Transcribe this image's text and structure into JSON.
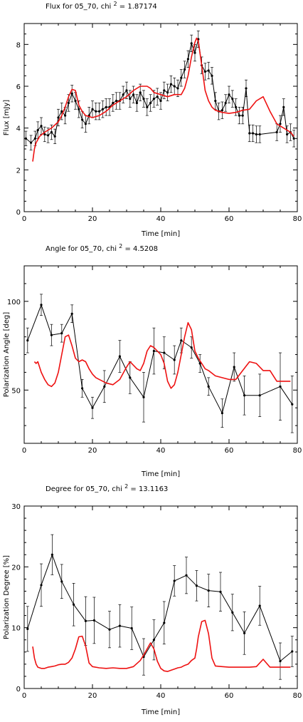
{
  "chart_data": [
    {
      "type": "line",
      "title": "Flux for 05_70, chi",
      "title_sup": "2",
      "title_value": " = 1.87174",
      "xlabel": "Time [min]",
      "ylabel": "Flux [mJy]",
      "xlim": [
        0,
        80
      ],
      "ylim": [
        0,
        9.0
      ],
      "xticks": [
        0,
        20,
        40,
        60,
        80
      ],
      "yticks": [
        0,
        2,
        4,
        6,
        8
      ],
      "series": [
        {
          "role": "observed",
          "color": "#000000",
          "x": [
            0.5,
            2,
            3.2,
            4,
            5,
            6,
            7,
            8,
            9,
            10,
            11,
            12,
            13,
            14,
            15,
            16,
            17,
            18,
            19,
            20,
            21,
            22,
            23,
            24,
            25,
            26,
            27,
            28,
            29,
            30,
            31,
            32,
            33,
            34,
            35,
            36,
            37,
            38,
            39,
            40,
            41,
            42,
            43,
            44,
            45,
            46,
            47,
            48,
            49,
            50,
            51,
            52,
            53,
            54,
            55,
            56,
            57,
            58,
            59,
            60,
            61,
            62,
            63,
            64,
            65,
            66,
            67,
            68,
            69,
            74,
            75,
            76,
            77,
            78,
            79
          ],
          "y": [
            3.5,
            3.3,
            3.5,
            3.9,
            4.1,
            3.7,
            3.65,
            3.8,
            3.6,
            4.5,
            4.8,
            4.6,
            5.2,
            5.65,
            5.3,
            4.9,
            4.4,
            4.2,
            4.6,
            4.9,
            4.8,
            4.8,
            4.9,
            5.0,
            5.0,
            5.2,
            5.3,
            5.3,
            5.6,
            5.8,
            5.4,
            5.6,
            5.2,
            5.7,
            5.4,
            5.0,
            5.2,
            5.4,
            5.5,
            5.3,
            5.8,
            5.7,
            6.1,
            6.0,
            5.9,
            6.4,
            6.8,
            7.3,
            8.05,
            7.6,
            8.25,
            7.0,
            6.7,
            6.75,
            6.5,
            5.3,
            4.8,
            4.85,
            5.2,
            5.6,
            5.4,
            5.0,
            4.6,
            4.6,
            5.9,
            3.75,
            3.75,
            3.7,
            3.7,
            3.8,
            4.2,
            5.0,
            3.7,
            3.8,
            3.5
          ],
          "err": [
            0.35,
            0.35,
            0.35,
            0.4,
            0.4,
            0.35,
            0.35,
            0.35,
            0.35,
            0.4,
            0.4,
            0.4,
            0.4,
            0.4,
            0.4,
            0.4,
            0.4,
            0.4,
            0.4,
            0.4,
            0.4,
            0.4,
            0.4,
            0.4,
            0.4,
            0.4,
            0.4,
            0.4,
            0.4,
            0.4,
            0.4,
            0.4,
            0.4,
            0.4,
            0.4,
            0.4,
            0.4,
            0.4,
            0.4,
            0.4,
            0.4,
            0.4,
            0.4,
            0.4,
            0.4,
            0.4,
            0.4,
            0.4,
            0.4,
            0.4,
            0.4,
            0.4,
            0.4,
            0.4,
            0.4,
            0.4,
            0.4,
            0.4,
            0.4,
            0.4,
            0.4,
            0.4,
            0.4,
            0.4,
            0.4,
            0.4,
            0.4,
            0.4,
            0.4,
            0.4,
            0.4,
            0.4,
            0.4,
            0.4,
            0.4
          ]
        },
        {
          "role": "model",
          "color": "#ee1111",
          "x": [
            2.5,
            3,
            3.5,
            4.5,
            6,
            8,
            10,
            11,
            12,
            13,
            14,
            15,
            16,
            17,
            18,
            20,
            22,
            24,
            26,
            28,
            30,
            32,
            34,
            36,
            37,
            38,
            40,
            42,
            44,
            46,
            47,
            48,
            49,
            50,
            50.5,
            51,
            52,
            53,
            54,
            55,
            56,
            58,
            60,
            62,
            64,
            66,
            68,
            70,
            72,
            74,
            76,
            78,
            79
          ],
          "y": [
            2.4,
            3.0,
            3.3,
            3.6,
            3.8,
            4.0,
            4.3,
            4.6,
            5.0,
            5.5,
            5.85,
            5.8,
            5.1,
            4.8,
            4.6,
            4.5,
            4.6,
            4.8,
            5.1,
            5.3,
            5.5,
            5.8,
            6.0,
            6.0,
            5.9,
            5.7,
            5.6,
            5.5,
            5.6,
            5.6,
            5.9,
            6.5,
            7.4,
            8.1,
            8.3,
            8.15,
            7.0,
            5.8,
            5.3,
            5.0,
            4.85,
            4.75,
            4.7,
            4.75,
            4.85,
            4.9,
            5.3,
            5.5,
            4.8,
            4.2,
            4.0,
            3.8,
            3.6
          ]
        }
      ]
    },
    {
      "type": "line",
      "title": "Angle for 05_70, chi",
      "title_sup": "2",
      "title_value": " = 4.5208",
      "xlabel": "Time [min]",
      "ylabel": "Polarization Angle [deg]",
      "xlim": [
        0,
        80
      ],
      "ylim": [
        20,
        120
      ],
      "xticks": [
        0,
        20,
        40,
        60,
        80
      ],
      "yticks": [
        50,
        100
      ],
      "series": [
        {
          "role": "observed",
          "color": "#000000",
          "x": [
            1,
            5,
            8,
            11,
            14,
            17,
            20,
            23.5,
            28,
            31,
            35,
            38,
            41,
            44,
            46,
            49,
            51.5,
            54,
            58,
            61.5,
            64.5,
            69,
            75,
            78.5
          ],
          "y": [
            78,
            98,
            81,
            82,
            93,
            51,
            40,
            52,
            69,
            57,
            46,
            72,
            71,
            67,
            78,
            74,
            65,
            52,
            37,
            63,
            47,
            47,
            52,
            42
          ],
          "err": [
            7,
            6,
            6,
            5,
            5,
            5,
            6,
            9,
            9,
            9,
            14,
            13,
            9,
            8,
            7,
            6,
            5,
            5,
            8,
            8,
            11,
            12,
            19,
            16
          ]
        },
        {
          "role": "model",
          "color": "#ee1111",
          "x": [
            3,
            3.5,
            4,
            5,
            6,
            7,
            8,
            9,
            10,
            11,
            12,
            13,
            14,
            15,
            16,
            17,
            18,
            19,
            20,
            21,
            22,
            24,
            26,
            28,
            30,
            31,
            32,
            33,
            34,
            35,
            36,
            37,
            38,
            39,
            40,
            41,
            42,
            43,
            44,
            45,
            46,
            47,
            48,
            49,
            50,
            51,
            52,
            53,
            54,
            56,
            58,
            60,
            62,
            64,
            66,
            68,
            70,
            72,
            74,
            76,
            78
          ],
          "y": [
            66,
            65,
            66,
            60,
            56,
            53,
            52,
            54,
            60,
            70,
            80,
            81,
            75,
            68,
            66,
            67,
            66,
            62,
            59,
            57,
            56,
            54,
            53,
            56,
            63,
            66,
            64,
            62,
            61,
            65,
            72,
            75,
            74,
            72,
            70,
            65,
            55,
            51,
            53,
            60,
            70,
            80,
            88,
            84,
            72,
            68,
            65,
            62,
            61,
            58,
            57,
            56,
            56,
            61,
            66,
            65,
            61,
            61,
            55,
            55,
            55
          ]
        }
      ]
    },
    {
      "type": "line",
      "title": "Degree for 05_70, chi",
      "title_sup": "2",
      "title_value": " = 13.1163",
      "xlabel": "Time [min]",
      "ylabel": "Polarization Degree [%]",
      "xlim": [
        0,
        80
      ],
      "ylim": [
        0,
        30
      ],
      "xticks": [
        0,
        20,
        40,
        60,
        80
      ],
      "yticks": [
        0,
        10,
        20,
        30
      ],
      "series": [
        {
          "role": "observed",
          "color": "#000000",
          "x": [
            1,
            5,
            8.2,
            11,
            14.5,
            18,
            20.5,
            25,
            28,
            31.5,
            35,
            38,
            41,
            44,
            47.5,
            50.5,
            54,
            57.5,
            61,
            64.5,
            69,
            75,
            78.5
          ],
          "y": [
            9.8,
            17,
            22,
            17.6,
            13.8,
            11.1,
            11.2,
            9.7,
            10.3,
            9.9,
            5.2,
            8.0,
            10.8,
            17.7,
            18.6,
            16.9,
            16.1,
            15.9,
            12.5,
            9.1,
            13.6,
            4.5,
            6.1
          ],
          "err": [
            3.7,
            3.5,
            3.3,
            2.8,
            3.5,
            4.0,
            3.8,
            3.0,
            3.5,
            3.5,
            3.0,
            3.3,
            3.5,
            2.5,
            3.0,
            2.5,
            2.7,
            3.2,
            3.0,
            3.5,
            3.2,
            3.0,
            2.5
          ]
        },
        {
          "role": "model",
          "color": "#ee1111",
          "x": [
            2.5,
            3,
            3.5,
            4,
            5,
            6,
            7,
            8,
            9,
            10,
            11,
            12,
            13,
            14,
            15,
            15.5,
            16,
            17,
            18,
            19,
            20,
            22,
            24,
            26,
            28,
            30,
            32,
            34,
            35,
            36,
            37,
            38,
            39,
            40,
            41,
            42,
            43,
            44,
            45,
            46,
            47,
            48,
            49,
            50,
            50.5,
            51,
            52,
            53,
            54,
            55,
            56,
            58,
            60,
            62,
            64,
            66,
            68,
            70,
            72,
            74,
            76,
            78
          ],
          "y": [
            6.9,
            5.0,
            4.0,
            3.5,
            3.3,
            3.3,
            3.5,
            3.6,
            3.7,
            3.9,
            4.0,
            4.0,
            4.3,
            5.0,
            6.5,
            7.5,
            8.5,
            8.6,
            7.0,
            4.2,
            3.6,
            3.4,
            3.3,
            3.4,
            3.3,
            3.3,
            3.6,
            4.6,
            5.5,
            6.5,
            7.5,
            6.5,
            4.5,
            3.3,
            2.9,
            2.8,
            3.0,
            3.2,
            3.4,
            3.5,
            3.8,
            4.0,
            4.6,
            5.0,
            6.5,
            8.5,
            11.0,
            11.2,
            9.0,
            5.0,
            3.7,
            3.6,
            3.5,
            3.5,
            3.5,
            3.5,
            3.6,
            4.8,
            3.5,
            3.5,
            3.5,
            3.5
          ]
        }
      ]
    }
  ]
}
